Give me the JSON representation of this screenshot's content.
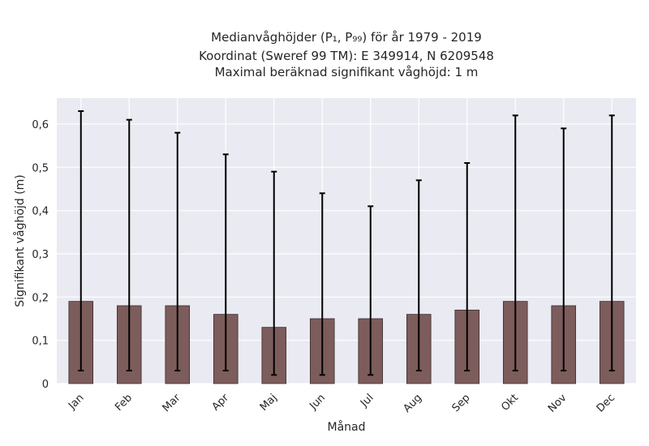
{
  "chart_data": {
    "type": "bar",
    "title": "Medianvåghöjder (P₁, P₉₉) för år 1979 - 2019",
    "subtitle": [
      "Koordinat (Sweref 99 TM): E 349914, N 6209548",
      "Maximal beräknad signifikant våghöjd: 1 m"
    ],
    "xlabel": "Månad",
    "ylabel": "Signifikant våghöjd (m)",
    "categories": [
      "Jan",
      "Feb",
      "Mar",
      "Apr",
      "Maj",
      "Jun",
      "Jul",
      "Aug",
      "Sep",
      "Okt",
      "Nov",
      "Dec"
    ],
    "values": [
      0.19,
      0.18,
      0.18,
      0.16,
      0.13,
      0.15,
      0.15,
      0.16,
      0.17,
      0.19,
      0.18,
      0.19
    ],
    "error_low": [
      0.03,
      0.03,
      0.03,
      0.03,
      0.02,
      0.02,
      0.02,
      0.03,
      0.03,
      0.03,
      0.03,
      0.03
    ],
    "error_high": [
      0.63,
      0.61,
      0.58,
      0.53,
      0.49,
      0.44,
      0.41,
      0.47,
      0.51,
      0.62,
      0.59,
      0.62
    ],
    "ylim": [
      0,
      0.66
    ],
    "yticks": [
      0,
      0.1,
      0.2,
      0.3,
      0.4,
      0.5,
      0.6
    ],
    "ytick_labels": [
      "0",
      "0,1",
      "0,2",
      "0,3",
      "0,4",
      "0,5",
      "0,6"
    ],
    "grid": true,
    "colors": {
      "bar": "#7d5c5c",
      "bar_edge": "#3a2e2e",
      "error": "#000000",
      "plot_bg": "#eaeaf2",
      "grid": "#ffffff"
    }
  }
}
